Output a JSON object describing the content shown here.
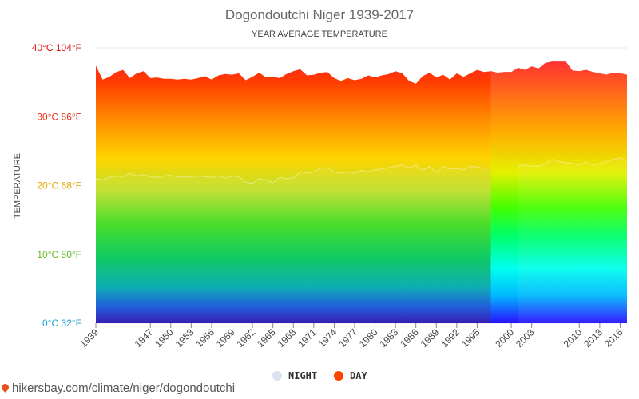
{
  "title": "Dogondoutchi Niger 1939-2017",
  "subtitle": "YEAR AVERAGE TEMPERATURE",
  "source_text": "hikersbay.com/climate/niger/dogondoutchi",
  "chart_data": {
    "type": "area",
    "title": "Dogondoutchi Niger 1939-2017",
    "subtitle": "YEAR AVERAGE TEMPERATURE",
    "xlabel": "",
    "ylabel": "TEMPERATURE",
    "ylim": [
      0,
      40
    ],
    "xlim": [
      1939,
      2017
    ],
    "grid": true,
    "legend_position": "bottom-center",
    "y_ticks": [
      {
        "value": 0,
        "label": "0°C 32°F",
        "color": "#1aa0d8"
      },
      {
        "value": 10,
        "label": "10°C 50°F",
        "color": "#66bb22"
      },
      {
        "value": 20,
        "label": "20°C 68°F",
        "color": "#e5a800"
      },
      {
        "value": 30,
        "label": "30°C 86°F",
        "color": "#e83010"
      },
      {
        "value": 40,
        "label": "40°C 104°F",
        "color": "#e01010"
      }
    ],
    "x_ticks": [
      1939,
      1947,
      1950,
      1953,
      1956,
      1959,
      1962,
      1965,
      1968,
      1971,
      1974,
      1977,
      1980,
      1983,
      1986,
      1989,
      1992,
      1995,
      2000,
      2003,
      2010,
      2013,
      2016
    ],
    "series": [
      {
        "name": "NIGHT",
        "color": "#dde3ee",
        "points": [
          [
            1939,
            21.0
          ],
          [
            1940,
            20.8
          ],
          [
            1941,
            21.2
          ],
          [
            1942,
            21.4
          ],
          [
            1943,
            21.3
          ],
          [
            1944,
            21.8
          ],
          [
            1945,
            21.4
          ],
          [
            1946,
            21.6
          ],
          [
            1947,
            21.3
          ],
          [
            1948,
            21.2
          ],
          [
            1949,
            21.4
          ],
          [
            1950,
            21.5
          ],
          [
            1951,
            21.3
          ],
          [
            1952,
            21.2
          ],
          [
            1953,
            21.3
          ],
          [
            1954,
            21.4
          ],
          [
            1955,
            21.3
          ],
          [
            1956,
            21.2
          ],
          [
            1957,
            21.4
          ],
          [
            1958,
            21.1
          ],
          [
            1959,
            21.4
          ],
          [
            1960,
            21.3
          ],
          [
            1961,
            20.5
          ],
          [
            1962,
            20.3
          ],
          [
            1963,
            21.0
          ],
          [
            1964,
            20.8
          ],
          [
            1965,
            20.4
          ],
          [
            1966,
            21.2
          ],
          [
            1967,
            21.0
          ],
          [
            1968,
            21.1
          ],
          [
            1969,
            22.0
          ],
          [
            1970,
            21.8
          ],
          [
            1971,
            22.0
          ],
          [
            1972,
            22.5
          ],
          [
            1973,
            22.6
          ],
          [
            1974,
            22.0
          ],
          [
            1975,
            21.8
          ],
          [
            1976,
            22.0
          ],
          [
            1977,
            21.8
          ],
          [
            1978,
            22.2
          ],
          [
            1979,
            22.0
          ],
          [
            1980,
            22.3
          ],
          [
            1981,
            22.4
          ],
          [
            1982,
            22.6
          ],
          [
            1983,
            22.8
          ],
          [
            1984,
            23.0
          ],
          [
            1985,
            22.6
          ],
          [
            1986,
            23.0
          ],
          [
            1987,
            22.2
          ],
          [
            1988,
            22.8
          ],
          [
            1989,
            21.9
          ],
          [
            1990,
            22.8
          ],
          [
            1991,
            22.4
          ],
          [
            1992,
            22.5
          ],
          [
            1993,
            22.3
          ],
          [
            1994,
            22.8
          ],
          [
            1995,
            22.7
          ],
          [
            1996,
            22.5
          ],
          [
            1997,
            22.6
          ],
          [
            2001,
            22.8
          ],
          [
            2002,
            23.0
          ],
          [
            2003,
            22.8
          ],
          [
            2004,
            22.8
          ],
          [
            2005,
            23.2
          ],
          [
            2006,
            23.8
          ],
          [
            2007,
            23.5
          ],
          [
            2008,
            23.3
          ],
          [
            2009,
            23.2
          ],
          [
            2010,
            23.0
          ],
          [
            2011,
            23.4
          ],
          [
            2012,
            23.0
          ],
          [
            2013,
            23.2
          ],
          [
            2014,
            23.5
          ],
          [
            2015,
            23.8
          ],
          [
            2016,
            24.0
          ],
          [
            2017,
            23.6
          ]
        ]
      },
      {
        "name": "DAY",
        "color": "#ff4400",
        "points": [
          [
            1939,
            37.4
          ],
          [
            1940,
            35.4
          ],
          [
            1941,
            35.8
          ],
          [
            1942,
            36.5
          ],
          [
            1943,
            36.8
          ],
          [
            1944,
            35.6
          ],
          [
            1945,
            36.3
          ],
          [
            1946,
            36.6
          ],
          [
            1947,
            35.6
          ],
          [
            1948,
            35.7
          ],
          [
            1949,
            35.5
          ],
          [
            1950,
            35.5
          ],
          [
            1951,
            35.4
          ],
          [
            1952,
            35.5
          ],
          [
            1953,
            35.4
          ],
          [
            1954,
            35.6
          ],
          [
            1955,
            35.9
          ],
          [
            1956,
            35.4
          ],
          [
            1957,
            36.0
          ],
          [
            1958,
            36.2
          ],
          [
            1959,
            36.1
          ],
          [
            1960,
            36.3
          ],
          [
            1961,
            35.3
          ],
          [
            1962,
            35.8
          ],
          [
            1963,
            36.4
          ],
          [
            1964,
            35.7
          ],
          [
            1965,
            35.8
          ],
          [
            1966,
            35.6
          ],
          [
            1967,
            36.2
          ],
          [
            1968,
            36.6
          ],
          [
            1969,
            36.9
          ],
          [
            1970,
            36.0
          ],
          [
            1971,
            36.1
          ],
          [
            1972,
            36.4
          ],
          [
            1973,
            36.5
          ],
          [
            1974,
            35.6
          ],
          [
            1975,
            35.2
          ],
          [
            1976,
            35.6
          ],
          [
            1977,
            35.3
          ],
          [
            1978,
            35.5
          ],
          [
            1979,
            36.0
          ],
          [
            1980,
            35.7
          ],
          [
            1981,
            36.0
          ],
          [
            1982,
            36.2
          ],
          [
            1983,
            36.6
          ],
          [
            1984,
            36.3
          ],
          [
            1985,
            35.2
          ],
          [
            1986,
            34.8
          ],
          [
            1987,
            35.9
          ],
          [
            1988,
            36.4
          ],
          [
            1989,
            35.7
          ],
          [
            1990,
            36.1
          ],
          [
            1991,
            35.4
          ],
          [
            1992,
            36.3
          ],
          [
            1993,
            35.8
          ],
          [
            1994,
            36.3
          ],
          [
            1995,
            36.8
          ],
          [
            1996,
            36.5
          ],
          [
            1997,
            36.6
          ],
          [
            1998,
            36.4
          ],
          [
            1999,
            36.5
          ],
          [
            2000,
            36.5
          ],
          [
            2001,
            37.1
          ],
          [
            2002,
            36.8
          ],
          [
            2003,
            37.3
          ],
          [
            2004,
            37.0
          ],
          [
            2005,
            37.8
          ],
          [
            2006,
            38.0
          ],
          [
            2007,
            38.0
          ],
          [
            2008,
            38.0
          ],
          [
            2009,
            36.7
          ],
          [
            2010,
            36.6
          ],
          [
            2011,
            36.8
          ],
          [
            2012,
            36.5
          ],
          [
            2013,
            36.3
          ],
          [
            2014,
            36.1
          ],
          [
            2015,
            36.4
          ],
          [
            2016,
            36.3
          ],
          [
            2017,
            36.1
          ]
        ]
      }
    ],
    "legend": [
      {
        "label": "NIGHT",
        "color": "#dde3ee"
      },
      {
        "label": "DAY",
        "color": "#ff4400"
      }
    ]
  }
}
